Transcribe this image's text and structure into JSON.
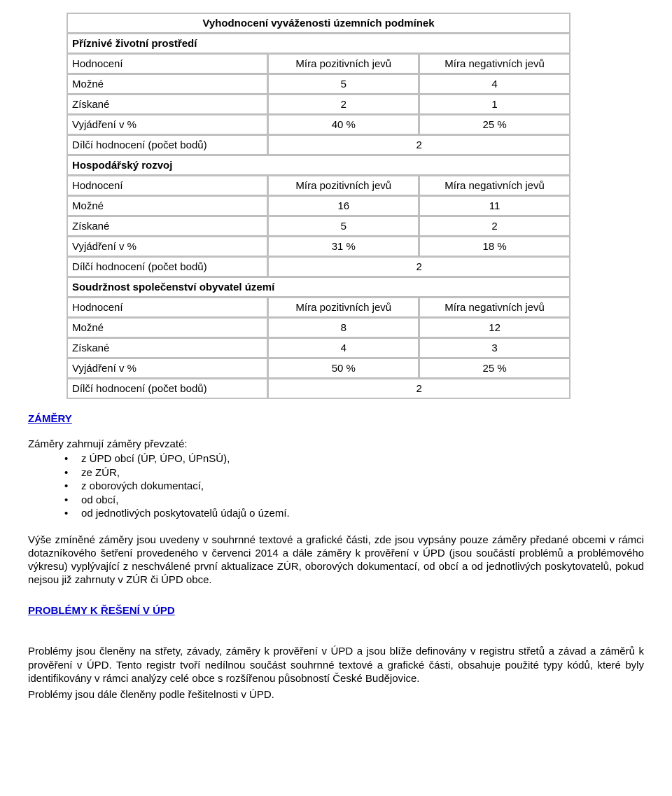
{
  "table": {
    "title": "Vyhodnocení vyváženosti územních podmínek",
    "col_labels": {
      "metric": "Hodnocení",
      "pos": "Míra pozitivních jevů",
      "neg": "Míra negativních jevů"
    },
    "row_labels": {
      "mozne": "Možné",
      "ziskane": "Získané",
      "vyjadreni": "Vyjádření v %",
      "dilci": "Dílčí hodnocení (počet bodů)"
    },
    "sections": [
      {
        "header": "Příznivé životní prostředí",
        "mozne_pos": "5",
        "mozne_neg": "4",
        "ziskane_pos": "2",
        "ziskane_neg": "1",
        "vyj_pos": "40 %",
        "vyj_neg": "25 %",
        "dilci": "2"
      },
      {
        "header": "Hospodářský rozvoj",
        "mozne_pos": "16",
        "mozne_neg": "11",
        "ziskane_pos": "5",
        "ziskane_neg": "2",
        "vyj_pos": "31 %",
        "vyj_neg": "18 %",
        "dilci": "2"
      },
      {
        "header": "Soudržnost společenství obyvatel území",
        "mozne_pos": "8",
        "mozne_neg": "12",
        "ziskane_pos": "4",
        "ziskane_neg": "3",
        "vyj_pos": "50 %",
        "vyj_neg": "25 %",
        "dilci": "2"
      }
    ]
  },
  "zamery_heading": "ZÁMĚRY",
  "zamery_intro": "Záměry zahrnují záměry převzaté:",
  "bullets": [
    "z ÚPD obcí (ÚP, ÚPO, ÚPnSÚ),",
    "ze ZÚR,",
    "z oborových dokumentací,",
    "od obcí,",
    "od jednotlivých poskytovatelů údajů o území."
  ],
  "para1": "Výše zmíněné záměry jsou uvedeny v souhrnné textové a grafické části, zde jsou vypsány pouze záměry předané obcemi v rámci dotazníkového šetření provedeného v červenci 2014 a dále záměry k prověření v ÚPD (jsou součástí problémů a problémového výkresu) vyplývající z neschválené první aktualizace ZÚR, oborových dokumentací, od obcí a od jednotlivých poskytovatelů, pokud nejsou již zahrnuty v ZÚR či ÚPD obce.",
  "problems_heading": "PROBLÉMY  K ŘEŠENÍ  V  ÚPD",
  "para2": "Problémy jsou členěny na střety, závady, záměry k prověření v ÚPD a jsou blíže definovány v registru střetů a závad a záměrů k prověření v ÚPD. Tento registr tvoří nedílnou součást souhrnné textové a grafické části, obsahuje použité typy kódů, které byly identifikovány v rámci analýzy celé obce s rozšířenou působností České Budějovice.",
  "para3": "Problémy jsou dále členěny podle řešitelnosti v ÚPD."
}
